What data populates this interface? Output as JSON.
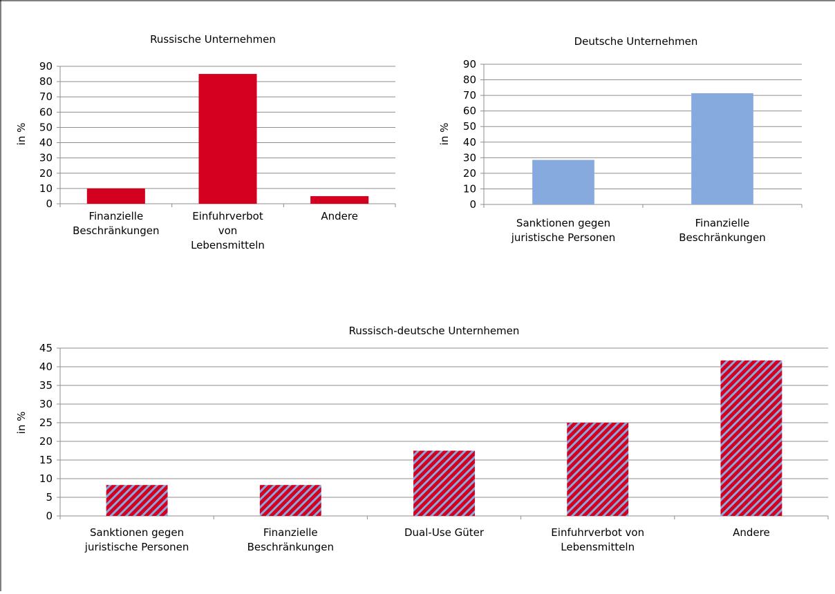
{
  "chart_data": [
    {
      "type": "bar",
      "title": "Russische Unternehmen",
      "ylabel": "in %",
      "ylim": [
        0,
        90
      ],
      "ytick_step": 10,
      "grid": true,
      "color": "#d40020",
      "categories": [
        [
          "Finanzielle",
          "Beschränkungen"
        ],
        [
          "Einfuhrverbot",
          "von",
          "Lebensmitteln"
        ],
        [
          "Andere"
        ]
      ],
      "values": [
        10,
        85,
        5
      ]
    },
    {
      "type": "bar",
      "title": "Deutsche Unternehmen",
      "ylabel": "in %",
      "ylim": [
        0,
        90
      ],
      "ytick_step": 10,
      "grid": true,
      "color": "#87aade",
      "categories": [
        [
          "Sanktionen gegen",
          "juristische Personen"
        ],
        [
          "Finanzielle",
          "Beschränkungen"
        ]
      ],
      "values": [
        28.6,
        71.4
      ]
    },
    {
      "type": "bar",
      "title": "Russisch-deutsche Unternhemen",
      "ylabel": "in %",
      "ylim": [
        0,
        45
      ],
      "ytick_step": 5,
      "grid": true,
      "color": "#d40020",
      "pattern_color": "#87aade",
      "pattern": "diagonal-stripes",
      "categories": [
        [
          "Sanktionen gegen",
          "juristische Personen"
        ],
        [
          "Finanzielle",
          "Beschränkungen"
        ],
        [
          "Dual-Use Güter"
        ],
        [
          "Einfuhrverbot von",
          "Lebensmitteln"
        ],
        [
          "Andere"
        ]
      ],
      "values": [
        8.3,
        8.3,
        17.5,
        25,
        41.7
      ]
    }
  ]
}
